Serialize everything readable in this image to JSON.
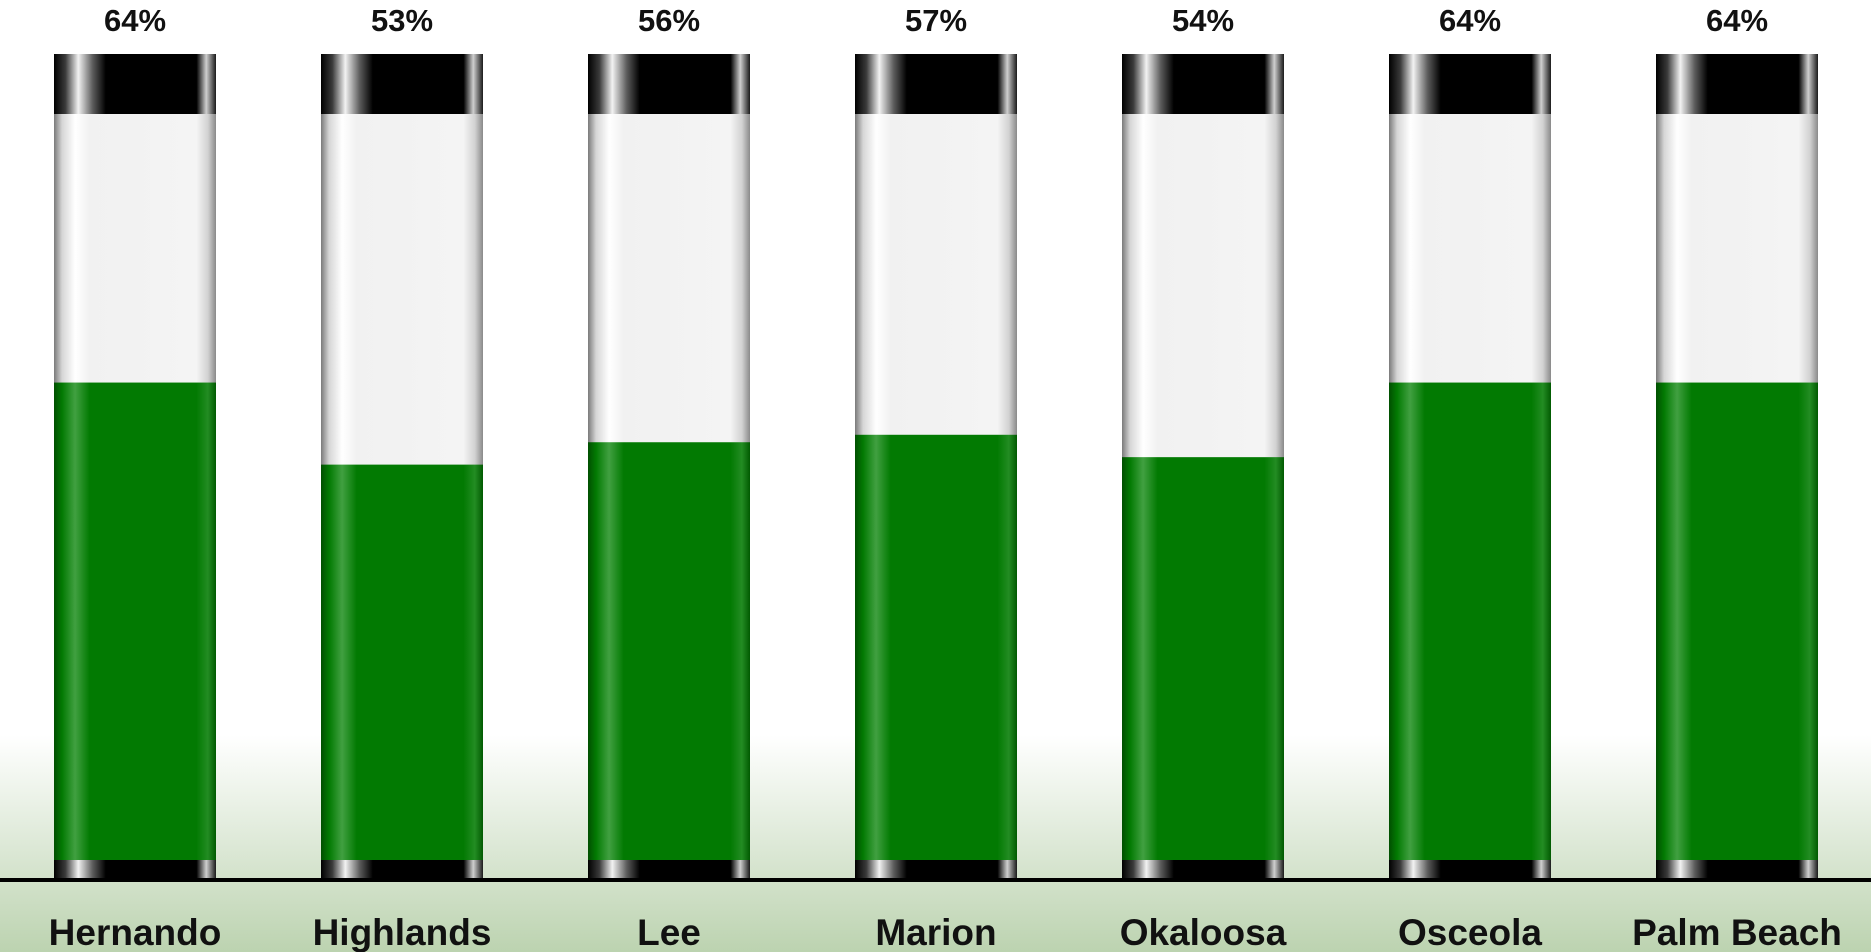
{
  "chart_data": {
    "type": "bar",
    "categories": [
      "Hernando",
      "Highlands",
      "Lee",
      "Marion",
      "Okaloosa",
      "Osceola",
      "Palm Beach"
    ],
    "values": [
      64,
      53,
      56,
      57,
      54,
      64,
      64
    ],
    "value_labels": [
      "64%",
      "53%",
      "56%",
      "57%",
      "54%",
      "64%",
      "64%"
    ],
    "ylim": [
      0,
      100
    ],
    "title": "",
    "xlabel": "",
    "ylabel": "",
    "grid": false,
    "legend": "none",
    "colors": {
      "fill": "#027a02",
      "empty": "#f4f4f4",
      "cap": "#000000",
      "axis": "#000000",
      "floor": "#bcd3b0"
    }
  }
}
